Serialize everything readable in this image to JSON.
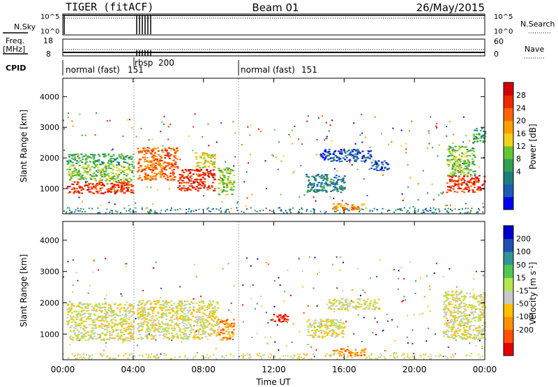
{
  "header": {
    "title": "TIGER (fitACF)",
    "beam": "Beam 01",
    "date": "26/May/2015"
  },
  "panels": {
    "nsky": {
      "label": "N.Sky",
      "ticks": [
        "10^5",
        "10^0"
      ],
      "right_label": "N.Search",
      "right_ticks": [
        "10^5",
        "10^0"
      ]
    },
    "freq": {
      "label_line1": "Freq.",
      "label_line2": "[MHz]",
      "ticks": [
        "18",
        "8"
      ],
      "right_label": "Nave",
      "right_ticks": [
        "60",
        "0"
      ]
    },
    "cpid": {
      "label": "CPID",
      "modes": [
        {
          "text": "normal (fast)",
          "id": "151",
          "start_h": 0
        },
        {
          "text": "rbsp",
          "id": "200",
          "start_h": 4.15
        },
        {
          "text": "normal (fast)",
          "id": "151",
          "start_h": 10.0
        }
      ]
    }
  },
  "chart_data": [
    {
      "type": "heatmap",
      "name": "power",
      "ylabel": "Slant Range [km]",
      "ylim": [
        180,
        4600
      ],
      "yticks": [
        1000,
        2000,
        3000,
        4000
      ],
      "xlim": [
        0,
        24
      ],
      "xticks": [
        "00:00",
        "04:00",
        "08:00",
        "12:00",
        "16:00",
        "20:00",
        "00:00"
      ],
      "colorbar": {
        "label": "Power [dB]",
        "ticks": [
          "28",
          "24",
          "20",
          "16",
          "12",
          "8",
          "4"
        ],
        "colors": [
          "#0000f0",
          "#1e5ab4",
          "#1e7d7d",
          "#32a050",
          "#64c832",
          "#f0d21e",
          "#ffa000",
          "#ff6400",
          "#f02800",
          "#d20000"
        ]
      },
      "regions": [
        {
          "t0": 0.2,
          "t1": 4.0,
          "r0": 850,
          "r1": 1250,
          "level": 8
        },
        {
          "t0": 0.2,
          "t1": 4.0,
          "r0": 1250,
          "r1": 1800,
          "level": 4
        },
        {
          "t0": 0.2,
          "t1": 4.0,
          "r0": 1800,
          "r1": 2150,
          "level": 3
        },
        {
          "t0": 4.2,
          "t1": 6.5,
          "r0": 1300,
          "r1": 2350,
          "level": 7
        },
        {
          "t0": 6.5,
          "t1": 8.6,
          "r0": 950,
          "r1": 1650,
          "level": 8
        },
        {
          "t0": 7.5,
          "t1": 8.6,
          "r0": 1700,
          "r1": 2200,
          "level": 5
        },
        {
          "t0": 8.8,
          "t1": 9.7,
          "r0": 800,
          "r1": 1700,
          "level": 4
        },
        {
          "t0": 13.8,
          "t1": 16.0,
          "r0": 900,
          "r1": 1500,
          "level": 2
        },
        {
          "t0": 14.6,
          "t1": 17.5,
          "r0": 1900,
          "r1": 2300,
          "level": 1
        },
        {
          "t0": 15.3,
          "t1": 17.2,
          "r0": 320,
          "r1": 560,
          "level": 6
        },
        {
          "t0": 17.5,
          "t1": 18.5,
          "r0": 1600,
          "r1": 1950,
          "level": 1
        },
        {
          "t0": 21.8,
          "t1": 24.0,
          "r0": 900,
          "r1": 1450,
          "level": 8
        },
        {
          "t0": 21.8,
          "t1": 23.4,
          "r0": 1450,
          "r1": 2400,
          "level": 4
        },
        {
          "t0": 23.3,
          "t1": 24.0,
          "r0": 2500,
          "r1": 3000,
          "level": 3
        }
      ]
    },
    {
      "type": "heatmap",
      "name": "velocity",
      "ylabel": "Slant Range [km]",
      "xlabel": "Time UT",
      "ylim": [
        180,
        4600
      ],
      "yticks": [
        1000,
        2000,
        3000,
        4000
      ],
      "xlim": [
        0,
        24
      ],
      "xticks": [
        "00:00",
        "04:00",
        "08:00",
        "12:00",
        "16:00",
        "20:00",
        "00:00"
      ],
      "colorbar": {
        "label": "Velocity [m s",
        "label_sup": "-1",
        "ticks": [
          "200",
          "100",
          "50",
          "15",
          "-15",
          "-50",
          "-100",
          "-200"
        ],
        "colors": [
          "#e60000",
          "#ff5000",
          "#ff9000",
          "#ffc000",
          "#c8c8c8",
          "#b4e650",
          "#50c850",
          "#329696",
          "#1e50b4",
          "#0000c8"
        ]
      },
      "regions": [
        {
          "t0": 0.2,
          "t1": 4.0,
          "r0": 800,
          "r1": 2000,
          "level": 4
        },
        {
          "t0": 4.2,
          "t1": 8.8,
          "r0": 850,
          "r1": 2100,
          "level": 4
        },
        {
          "t0": 8.8,
          "t1": 9.7,
          "r0": 800,
          "r1": 1500,
          "level": 2
        },
        {
          "t0": 11.8,
          "t1": 12.8,
          "r0": 1350,
          "r1": 1650,
          "level": 0
        },
        {
          "t0": 13.8,
          "t1": 16.0,
          "r0": 900,
          "r1": 1500,
          "level": 4
        },
        {
          "t0": 15.0,
          "t1": 18.0,
          "r0": 1800,
          "r1": 2150,
          "level": 4
        },
        {
          "t0": 15.3,
          "t1": 17.2,
          "r0": 320,
          "r1": 560,
          "level": 2
        },
        {
          "t0": 21.6,
          "t1": 24.0,
          "r0": 850,
          "r1": 2400,
          "level": 4
        }
      ]
    }
  ]
}
